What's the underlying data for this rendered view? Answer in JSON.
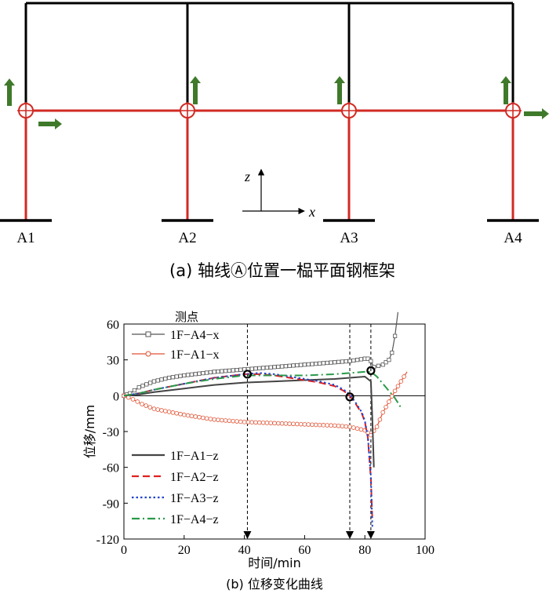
{
  "frame": {
    "nodes": [
      "A1",
      "A2",
      "A3",
      "A4"
    ],
    "axis_z": "z",
    "axis_x": "x",
    "caption": "(a) 轴线Ⓐ位置一榀平面钢框架",
    "colors": {
      "column": "#d12a24",
      "beam": "#d12a24",
      "upper": "#000000",
      "arrow": "#3f7a2b"
    }
  },
  "chart_data": {
    "type": "line",
    "caption": "(b) 位移变化曲线",
    "xlabel": "时间/min",
    "ylabel": "位移/mm",
    "xlim": [
      0,
      100
    ],
    "ylim": [
      -120,
      60
    ],
    "xticks": [
      0,
      20,
      40,
      60,
      80,
      100
    ],
    "yticks": [
      60,
      30,
      0,
      -30,
      -60,
      -90,
      -120
    ],
    "legend_title": "测点",
    "vlines": [
      41,
      75,
      82
    ],
    "series": [
      {
        "name": "1F−A4−x",
        "color": "#555555",
        "style": "solid",
        "marker": "square",
        "x": [
          0,
          2,
          5,
          10,
          15,
          20,
          30,
          40,
          50,
          60,
          70,
          75,
          80,
          81,
          82,
          83,
          86,
          88,
          89,
          90,
          91
        ],
        "y": [
          0,
          2,
          7,
          12,
          15,
          17,
          20,
          22,
          24,
          26,
          28,
          29,
          31,
          31,
          29,
          24,
          26,
          30,
          36,
          50,
          70
        ]
      },
      {
        "name": "1F−A1−x",
        "color": "#e05030",
        "style": "solid",
        "marker": "circle",
        "x": [
          0,
          3,
          6,
          10,
          20,
          30,
          40,
          50,
          60,
          70,
          75,
          80,
          82,
          84,
          86,
          88,
          90,
          92,
          94
        ],
        "y": [
          0,
          -3,
          -7,
          -11,
          -16,
          -20,
          -22,
          -23,
          -24,
          -25,
          -26,
          -29,
          -33,
          -26,
          -14,
          -5,
          4,
          12,
          20
        ]
      },
      {
        "name": "1F−A1−z",
        "color": "#444444",
        "style": "solid",
        "marker": "none",
        "x": [
          0,
          5,
          10,
          20,
          30,
          40,
          50,
          60,
          70,
          75,
          80,
          82,
          82.5,
          83
        ],
        "y": [
          0,
          1,
          3,
          6,
          9,
          11,
          12,
          13,
          14,
          15,
          16,
          12,
          -20,
          -60
        ]
      },
      {
        "name": "1F−A2−z",
        "color": "#e02020",
        "style": "dashed",
        "marker": "none",
        "x": [
          0,
          5,
          10,
          20,
          30,
          40,
          45,
          50,
          60,
          65,
          70,
          73,
          75,
          77,
          79,
          80,
          81,
          82,
          82.5
        ],
        "y": [
          0,
          2,
          5,
          10,
          15,
          18,
          18,
          17,
          13,
          11,
          8,
          4,
          0,
          -7,
          -15,
          -22,
          -35,
          -70,
          -105
        ]
      },
      {
        "name": "1F−A3−z",
        "color": "#2244cc",
        "style": "dotted",
        "marker": "none",
        "x": [
          0,
          5,
          10,
          20,
          30,
          40,
          45,
          50,
          60,
          65,
          70,
          73,
          75,
          77,
          79,
          80,
          81,
          82,
          82.5
        ],
        "y": [
          0,
          2,
          5,
          10,
          15,
          18,
          19,
          18,
          14,
          12,
          9,
          5,
          1,
          -6,
          -14,
          -21,
          -34,
          -68,
          -110
        ]
      },
      {
        "name": "1F−A4−z",
        "color": "#2a9a4a",
        "style": "dashdot",
        "marker": "none",
        "x": [
          0,
          5,
          10,
          20,
          30,
          40,
          50,
          60,
          70,
          75,
          80,
          82,
          84,
          86,
          88,
          90,
          92
        ],
        "y": [
          0,
          2,
          5,
          10,
          14,
          17,
          17,
          17,
          18,
          19,
          20,
          20,
          16,
          10,
          4,
          -2,
          -10
        ]
      }
    ],
    "markers": [
      {
        "x": 41,
        "y": 18
      },
      {
        "x": 75,
        "y": -1
      },
      {
        "x": 82,
        "y": 21
      }
    ]
  }
}
